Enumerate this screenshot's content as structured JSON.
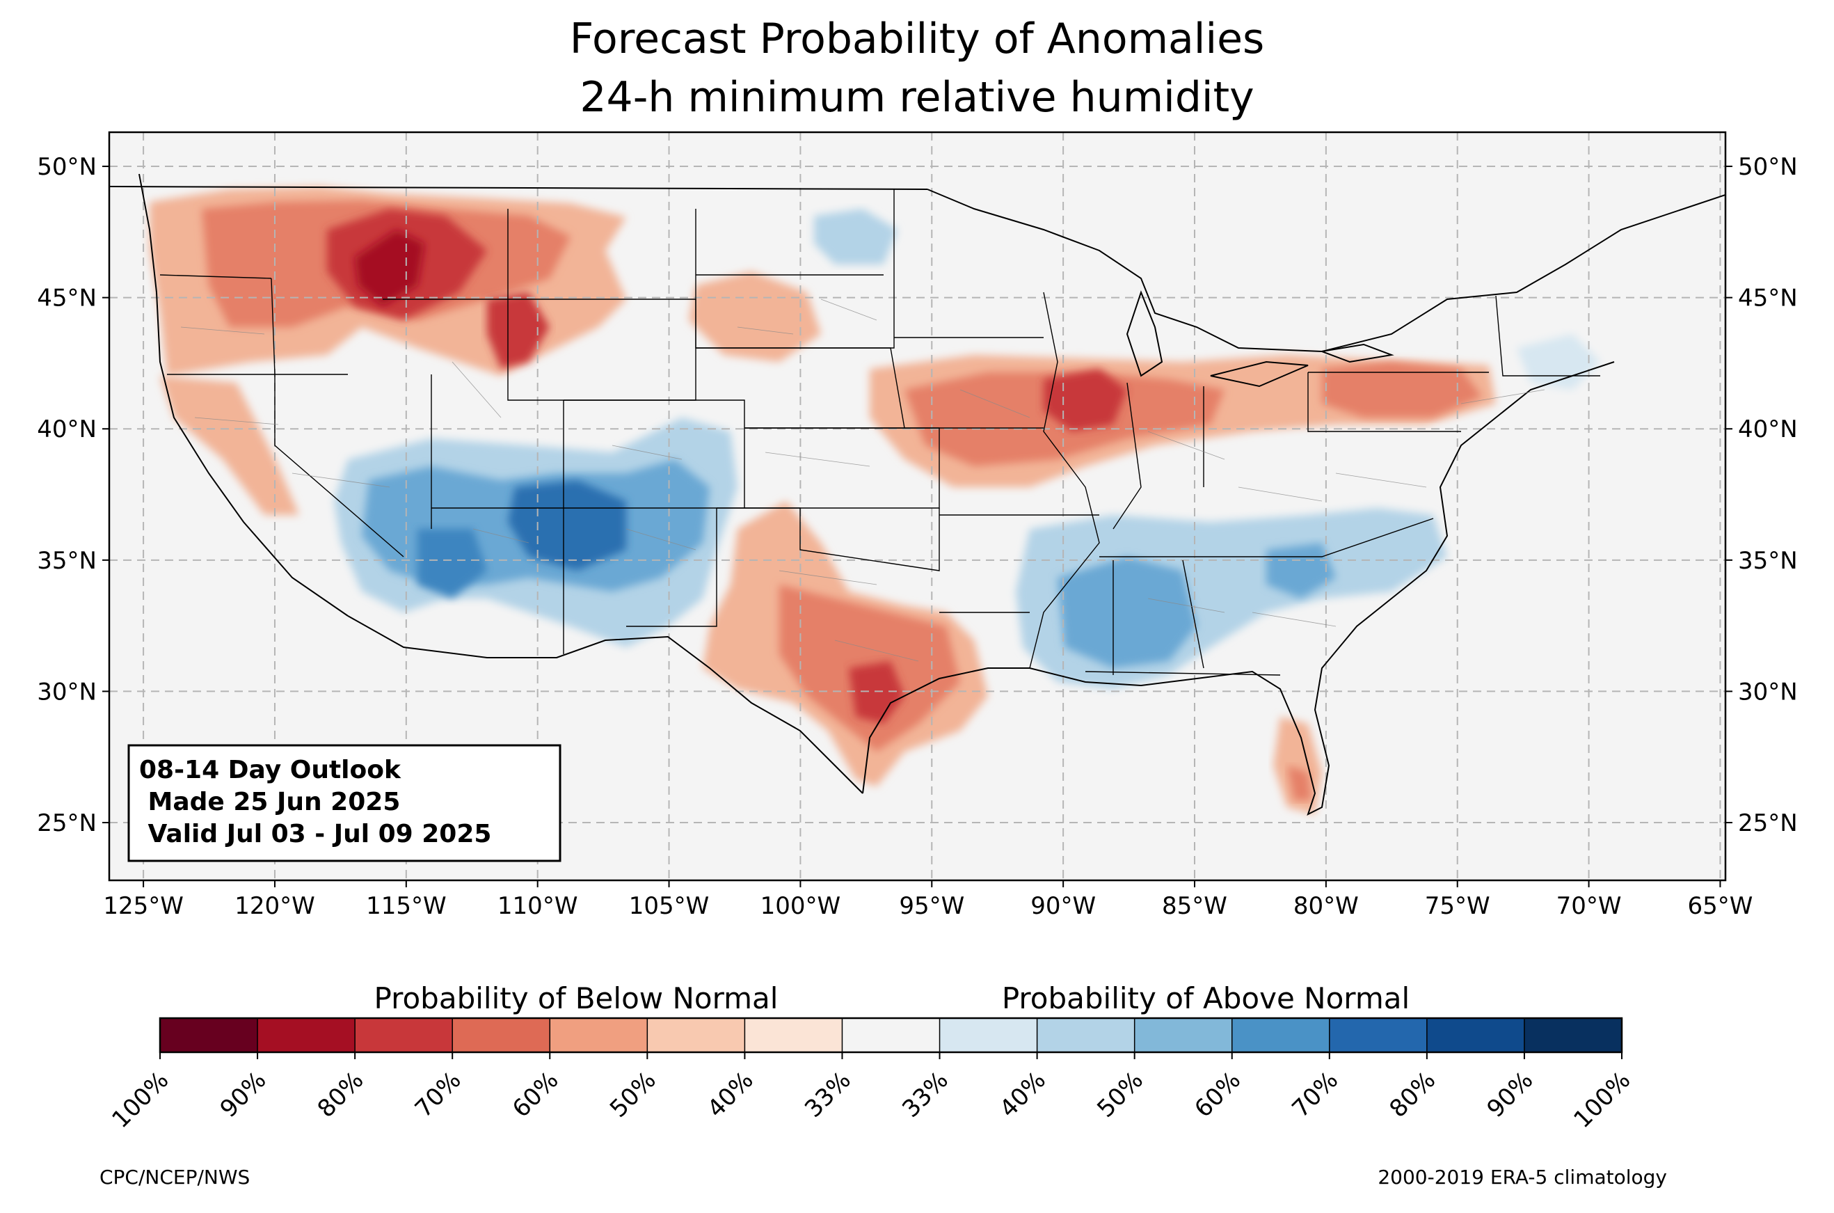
{
  "title": {
    "line1": "Forecast Probability of Anomalies",
    "line2": "24-h minimum relative humidity"
  },
  "map": {
    "lon_ticks": [
      "125°W",
      "120°W",
      "115°W",
      "110°W",
      "105°W",
      "100°W",
      "95°W",
      "90°W",
      "85°W",
      "80°W",
      "75°W",
      "70°W",
      "65°W"
    ],
    "lat_ticks": [
      "50°N",
      "45°N",
      "40°N",
      "35°N",
      "30°N",
      "25°N"
    ],
    "lon_range": [
      -126.3,
      -64.8
    ],
    "lat_range": [
      22.8,
      51.3
    ],
    "grid": "dashed"
  },
  "outlook_box": {
    "line1": "08-14 Day Outlook",
    "line2": " Made 25 Jun 2025",
    "line3": " Valid Jul 03 - Jul 09 2025"
  },
  "colorbar": {
    "below_label": "Probability of Below Normal",
    "above_label": "Probability of Above Normal",
    "tick_labels": [
      "100%",
      "90%",
      "80%",
      "70%",
      "60%",
      "50%",
      "40%",
      "33%",
      "33%",
      "40%",
      "50%",
      "60%",
      "70%",
      "80%",
      "90%",
      "100%"
    ],
    "colors": [
      "#67001f",
      "#a50f23",
      "#c8373a",
      "#de6a55",
      "#f09f80",
      "#f8c9b0",
      "#fbe4d6",
      "#f4f4f4",
      "#d7e7f1",
      "#b3d3e7",
      "#82b8d9",
      "#4a92c6",
      "#2367ad",
      "#0f4a8c",
      "#08305f"
    ]
  },
  "footer": {
    "left": "CPC/NCEP/NWS",
    "right": "2000-2019 ERA-5 climatology"
  },
  "colors": {
    "background": "#f4f4f4",
    "below_light": "#f8c9b0",
    "below_mid": "#e67d62",
    "below_dark": "#c8373a",
    "below_darkest": "#a50f23",
    "above_light": "#b3d3e7",
    "above_mid": "#6aa8d4",
    "above_dark": "#2b6fb0"
  }
}
